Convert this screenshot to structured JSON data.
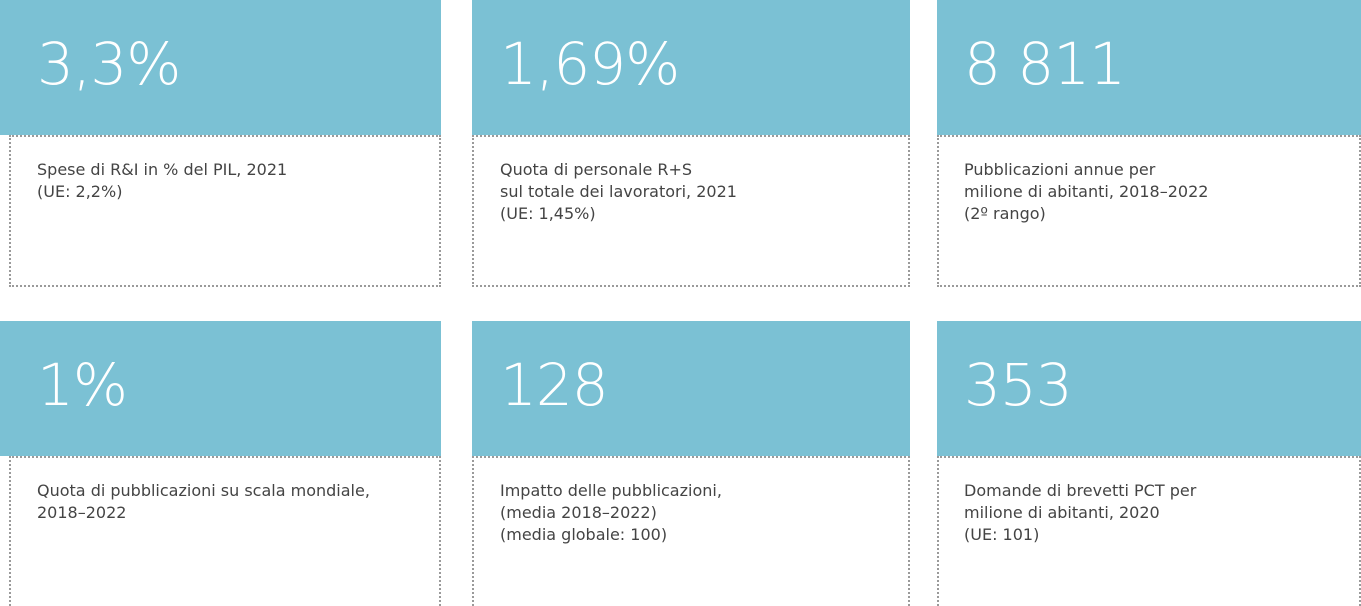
{
  "cards": [
    {
      "value": "3,3%",
      "lines": [
        "Spese di R&I in % del PIL, 2021",
        "(UE: 2,2%)"
      ]
    },
    {
      "value": "1,69%",
      "lines": [
        "Quota di personale R+S",
        "sul totale dei lavoratori, 2021",
        "(UE: 1,45%)"
      ]
    },
    {
      "value": "8 811",
      "lines": [
        "Pubblicazioni annue per",
        "milione di abitanti, 2018–2022",
        "(2º rango)"
      ]
    },
    {
      "value": "1%",
      "lines": [
        "Quota di pubblicazioni su scala mondiale,",
        "2018–2022"
      ]
    },
    {
      "value": "128",
      "lines": [
        "Impatto delle pubblicazioni,",
        "(media 2018–2022)",
        "(media globale: 100)"
      ]
    },
    {
      "value": "353",
      "lines": [
        "Domande di brevetti PCT per",
        "milione di abitanti, 2020",
        "(UE: 101)"
      ]
    }
  ]
}
